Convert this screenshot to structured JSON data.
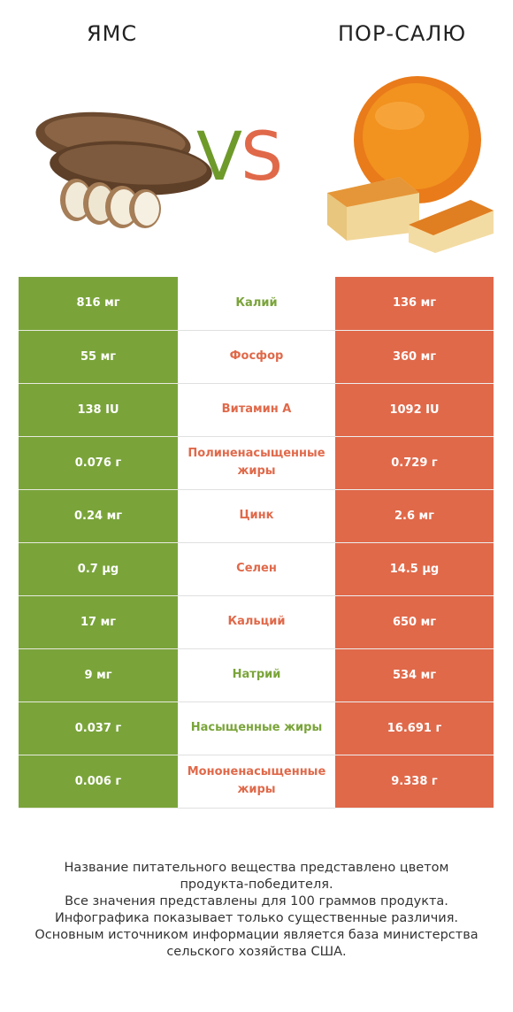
{
  "header": {
    "left_title": "ЯМС",
    "right_title": "ПОР-САЛЮ",
    "vs_v": "V",
    "vs_s": "S"
  },
  "colors": {
    "left": "#7aa43a",
    "right": "#e0694a"
  },
  "chart_data": {
    "type": "table",
    "columns": [
      "ЯМС",
      "",
      "ПОР-САЛЮ"
    ],
    "rows": [
      {
        "left": "816 мг",
        "name": "Калий",
        "right": "136 мг",
        "winner": "left"
      },
      {
        "left": "55 мг",
        "name": "Фосфор",
        "right": "360 мг",
        "winner": "right"
      },
      {
        "left": "138 IU",
        "name": "Витамин А",
        "right": "1092 IU",
        "winner": "right"
      },
      {
        "left": "0.076 г",
        "name": "Полиненасыщенные жиры",
        "right": "0.729 г",
        "winner": "right"
      },
      {
        "left": "0.24 мг",
        "name": "Цинк",
        "right": "2.6 мг",
        "winner": "right"
      },
      {
        "left": "0.7 µg",
        "name": "Селен",
        "right": "14.5 µg",
        "winner": "right"
      },
      {
        "left": "17 мг",
        "name": "Кальций",
        "right": "650 мг",
        "winner": "right"
      },
      {
        "left": "9 мг",
        "name": "Натрий",
        "right": "534 мг",
        "winner": "left"
      },
      {
        "left": "0.037 г",
        "name": "Насыщенные жиры",
        "right": "16.691 г",
        "winner": "left"
      },
      {
        "left": "0.006 г",
        "name": "Мононенасыщенные жиры",
        "right": "9.338 г",
        "winner": "right"
      }
    ]
  },
  "footer": {
    "line1": "Название питательного вещества представлено цветом",
    "line2": "продукта-победителя.",
    "line3": "Все значения представлены для 100 граммов продукта.",
    "line4": "Инфографика показывает только существенные различия.",
    "line5": "Основным источником информации является база министерства",
    "line6": "сельского хозяйства США."
  }
}
